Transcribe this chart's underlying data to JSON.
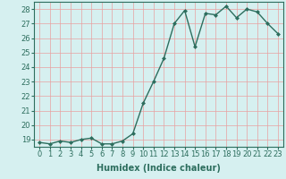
{
  "x": [
    0,
    1,
    2,
    3,
    4,
    5,
    6,
    7,
    8,
    9,
    10,
    11,
    12,
    13,
    14,
    15,
    16,
    17,
    18,
    19,
    20,
    21,
    22,
    23
  ],
  "y": [
    18.8,
    18.7,
    18.9,
    18.8,
    19.0,
    19.1,
    18.7,
    18.7,
    18.9,
    19.4,
    21.5,
    23.0,
    24.6,
    27.0,
    27.9,
    25.4,
    27.7,
    27.6,
    28.2,
    27.4,
    28.0,
    27.8,
    27.0,
    26.3
  ],
  "xlabel": "Humidex (Indice chaleur)",
  "xlim": [
    -0.5,
    23.5
  ],
  "ylim": [
    18.5,
    28.5
  ],
  "yticks": [
    19,
    20,
    21,
    22,
    23,
    24,
    25,
    26,
    27,
    28
  ],
  "xticks": [
    0,
    1,
    2,
    3,
    4,
    5,
    6,
    7,
    8,
    9,
    10,
    11,
    12,
    13,
    14,
    15,
    16,
    17,
    18,
    19,
    20,
    21,
    22,
    23
  ],
  "line_color": "#2d6e5e",
  "marker_color": "#2d6e5e",
  "bg_color": "#d6f0f0",
  "grid_color": "#e8a0a0",
  "axes_color": "#2d6e5e",
  "tick_label_color": "#2d6e5e",
  "xlabel_color": "#2d6e5e",
  "marker": "D",
  "markersize": 2.0,
  "linewidth": 1.0,
  "xlabel_fontsize": 7,
  "tick_fontsize": 6
}
